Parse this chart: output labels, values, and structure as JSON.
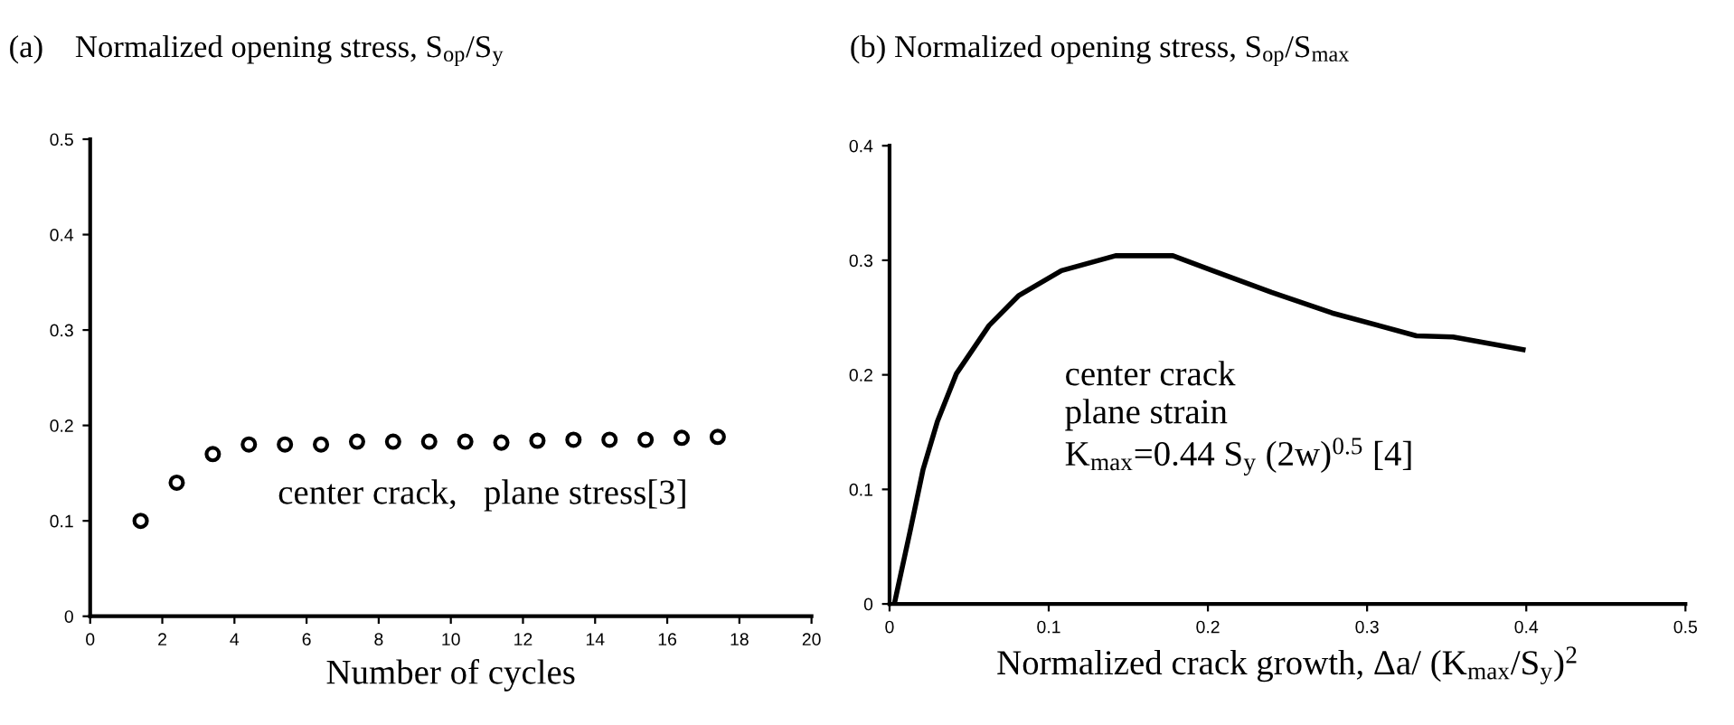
{
  "chart_data": [
    {
      "type": "scatter",
      "title": "(a)    Normalized opening stress, S$_{op}$/S$_{y}$",
      "xlabel": "Number of cycles",
      "x": [
        1.4,
        2.4,
        3.4,
        4.4,
        5.4,
        6.4,
        7.4,
        8.4,
        9.4,
        10.4,
        11.4,
        12.4,
        13.4,
        14.4,
        15.4,
        16.4,
        17.4
      ],
      "series": [
        {
          "color": "#000000",
          "values": [
            0.1,
            0.14,
            0.17,
            0.18,
            0.18,
            0.18,
            0.183,
            0.183,
            0.183,
            0.183,
            0.182,
            0.184,
            0.185,
            0.185,
            0.185,
            0.187,
            0.188
          ]
        }
      ],
      "marker": "circle",
      "xlim": [
        0,
        20
      ],
      "xticks": [
        0,
        2,
        4,
        6,
        8,
        10,
        12,
        14,
        16,
        18,
        20
      ],
      "ylim": [
        0,
        0.5
      ],
      "yticks": [
        0,
        0.1,
        0.2,
        0.3,
        0.4,
        0.5
      ],
      "grid": false,
      "legend": false,
      "annotations": [
        "center crack,   plane stress[3]"
      ]
    },
    {
      "type": "line",
      "title": "(b) Normalized opening stress, S$_{op}$/S$_{max}$",
      "xlabel": "Normalized crack growth, Δa/ (K$_{max}$/S$_{y}$)$^{2}$",
      "x": [
        0.003,
        0.013,
        0.021,
        0.03,
        0.042,
        0.0625,
        0.081,
        0.108,
        0.142,
        0.178,
        0.203,
        0.24,
        0.278,
        0.331,
        0.354,
        0.398
      ],
      "series": [
        {
          "color": "#000000",
          "values": [
            0,
            0.064,
            0.117,
            0.159,
            0.201,
            0.243,
            0.269,
            0.291,
            0.304,
            0.304,
            0.291,
            0.272,
            0.254,
            0.234,
            0.233,
            0.222
          ]
        }
      ],
      "marker": "none",
      "line_style": "solid",
      "xlim": [
        0,
        0.5
      ],
      "xticks": [
        0,
        0.1,
        0.2,
        0.3,
        0.4,
        0.5
      ],
      "ylim": [
        0,
        0.4
      ],
      "yticks": [
        0,
        0.1,
        0.2,
        0.3,
        0.4
      ],
      "grid": false,
      "legend": false,
      "annotations": [
        "center crack\nplane strain\nK$_{max}$=0.44 S$_{y}$ (2w)$^{0.5}$ [4]"
      ]
    }
  ]
}
